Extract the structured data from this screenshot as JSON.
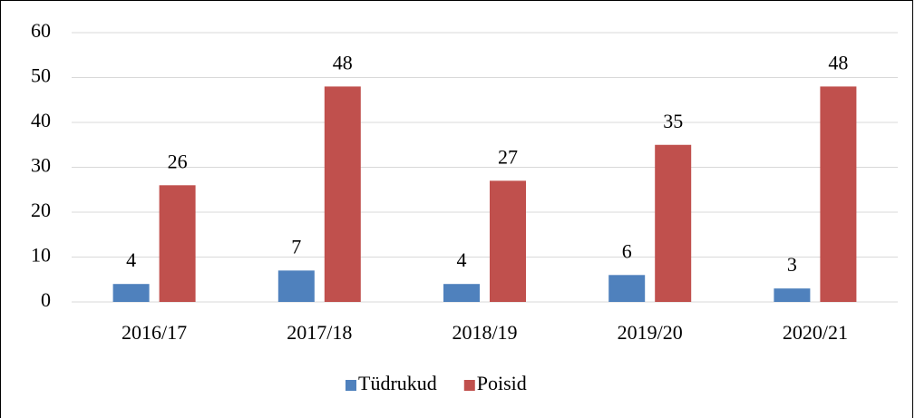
{
  "chart_data": {
    "type": "bar",
    "categories": [
      "2016/17",
      "2017/18",
      "2018/19",
      "2019/20",
      "2020/21"
    ],
    "series": [
      {
        "name": "Tüdrukud",
        "color": "#4f81bd",
        "values": [
          4,
          7,
          4,
          6,
          3
        ]
      },
      {
        "name": "Poisid",
        "color": "#c0504d",
        "values": [
          26,
          48,
          27,
          35,
          48
        ]
      }
    ],
    "ylim": [
      0,
      60
    ],
    "yticks": [
      0,
      10,
      20,
      30,
      40,
      50,
      60
    ],
    "grid": true,
    "legend": "bottom"
  }
}
